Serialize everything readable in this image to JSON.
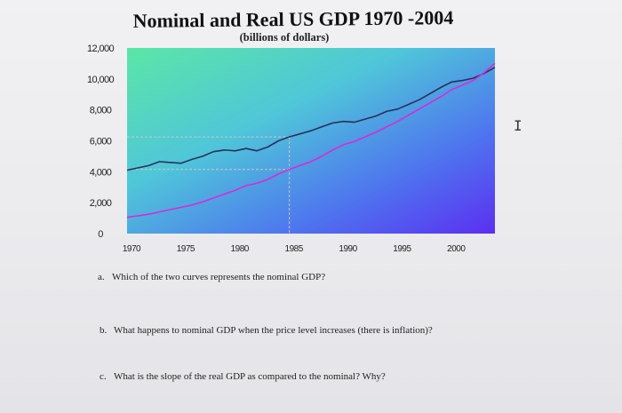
{
  "chart_data": {
    "type": "line",
    "title": "Nominal and Real US GDP 1970 -2004",
    "subtitle": "(billions of dollars)",
    "xlabel": "",
    "ylabel": "",
    "xlim": [
      1970,
      2004
    ],
    "ylim": [
      0,
      12000
    ],
    "x_ticks": [
      1970,
      1975,
      1980,
      1985,
      1990,
      1995,
      2000
    ],
    "x_tick_labels": [
      "1970",
      "1975",
      "1980",
      "1985",
      "1990",
      "1995",
      "2000"
    ],
    "y_ticks": [
      0,
      2000,
      4000,
      6000,
      8000,
      10000,
      12000
    ],
    "y_tick_labels": [
      "0",
      "2,000",
      "4,000",
      "6,000",
      "8,000",
      "10,000",
      "12,000"
    ],
    "grid": false,
    "legend": "none",
    "x": [
      1970,
      1971,
      1972,
      1973,
      1974,
      1975,
      1976,
      1977,
      1978,
      1979,
      1980,
      1981,
      1982,
      1983,
      1984,
      1985,
      1986,
      1987,
      1988,
      1989,
      1990,
      1991,
      1992,
      1993,
      1994,
      1995,
      1996,
      1997,
      1998,
      1999,
      2000,
      2001,
      2002,
      2003,
      2004
    ],
    "series": [
      {
        "values": [
          4100,
          4250,
          4400,
          4650,
          4600,
          4550,
          4800,
          5000,
          5300,
          5400,
          5350,
          5500,
          5350,
          5600,
          6000,
          6250,
          6450,
          6650,
          6900,
          7150,
          7250,
          7200,
          7400,
          7600,
          7900,
          8050,
          8350,
          8650,
          9050,
          9450,
          9800,
          9900,
          10050,
          10350,
          10750
        ],
        "color": "#2b2f5a"
      },
      {
        "values": [
          1050,
          1150,
          1250,
          1400,
          1550,
          1700,
          1850,
          2050,
          2300,
          2550,
          2800,
          3100,
          3250,
          3500,
          3850,
          4150,
          4400,
          4650,
          5000,
          5400,
          5750,
          5950,
          6250,
          6550,
          6900,
          7250,
          7650,
          8050,
          8450,
          8850,
          9300,
          9600,
          9900,
          10400,
          11000
        ],
        "color": "#d82ad6"
      }
    ],
    "guides": [
      {
        "x": 1985,
        "y": 6250
      },
      {
        "x": 1985,
        "y": 4150
      }
    ]
  },
  "questions": {
    "a": {
      "label": "a.",
      "text": "Which of the two curves represents the nominal GDP?"
    },
    "b": {
      "label": "b.",
      "text": "What happens to nominal GDP when the price level increases (there is inflation)?"
    },
    "c": {
      "label": "c.",
      "text": "What is the slope of the real GDP as compared to the nominal? Why?"
    }
  },
  "colors": {
    "plot_gradient_top_left": "#52e0a6",
    "plot_gradient_bottom_right": "#5a2ff0",
    "guide_line": "#c8c8c8"
  }
}
